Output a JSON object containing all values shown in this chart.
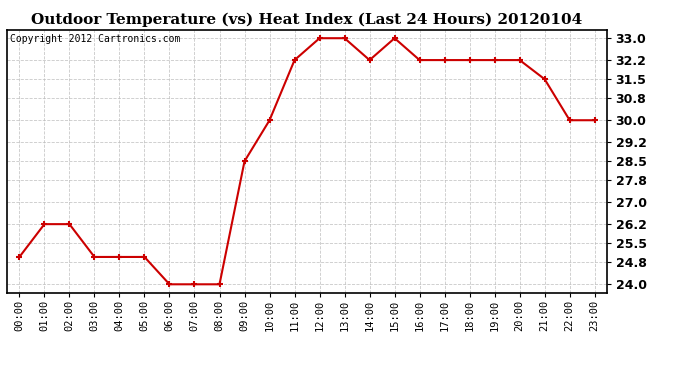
{
  "title": "Outdoor Temperature (vs) Heat Index (Last 24 Hours) 20120104",
  "copyright_text": "Copyright 2012 Cartronics.com",
  "x_labels": [
    "00:00",
    "01:00",
    "02:00",
    "03:00",
    "04:00",
    "05:00",
    "06:00",
    "07:00",
    "08:00",
    "09:00",
    "10:00",
    "11:00",
    "12:00",
    "13:00",
    "14:00",
    "15:00",
    "16:00",
    "17:00",
    "18:00",
    "19:00",
    "20:00",
    "21:00",
    "22:00",
    "23:00"
  ],
  "y_values": [
    25.0,
    26.2,
    26.2,
    25.0,
    25.0,
    25.0,
    24.0,
    24.0,
    24.0,
    28.5,
    30.0,
    32.2,
    33.0,
    33.0,
    32.2,
    33.0,
    32.2,
    32.2,
    32.2,
    32.2,
    32.2,
    31.5,
    30.0,
    30.0
  ],
  "y_ticks": [
    24.0,
    24.8,
    25.5,
    26.2,
    27.0,
    27.8,
    28.5,
    29.2,
    30.0,
    30.8,
    31.5,
    32.2,
    33.0
  ],
  "ylim": [
    23.7,
    33.3
  ],
  "line_color": "#cc0000",
  "marker": "+",
  "marker_size": 5,
  "marker_edge_width": 1.5,
  "line_width": 1.5,
  "background_color": "#ffffff",
  "plot_bg_color": "#ffffff",
  "grid_color": "#bbbbbb",
  "title_fontsize": 11,
  "copyright_fontsize": 7,
  "tick_fontsize": 7.5,
  "y_tick_fontsize": 9
}
